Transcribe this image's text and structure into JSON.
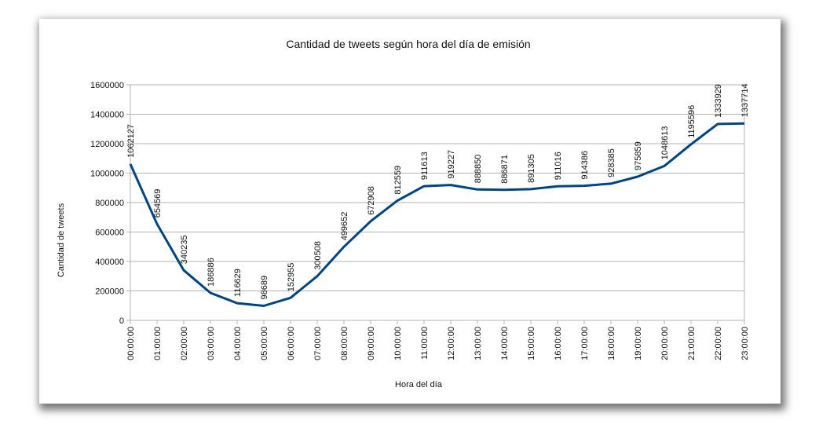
{
  "chart_data": {
    "type": "line",
    "title": "Cantidad de tweets según hora del día de emisión",
    "xlabel": "Hora del día",
    "ylabel": "Cantidad de tweets",
    "categories": [
      "00:00:00",
      "01:00:00",
      "02:00:00",
      "03:00:00",
      "04:00:00",
      "05:00:00",
      "06:00:00",
      "07:00:00",
      "08:00:00",
      "09:00:00",
      "10:00:00",
      "11:00:00",
      "12:00:00",
      "13:00:00",
      "14:00:00",
      "15:00:00",
      "16:00:00",
      "17:00:00",
      "18:00:00",
      "19:00:00",
      "20:00:00",
      "21:00:00",
      "22:00:00",
      "23:00:00"
    ],
    "values": [
      1062127,
      654569,
      340235,
      186886,
      116629,
      98689,
      152955,
      300508,
      499652,
      672908,
      812559,
      911613,
      919227,
      888850,
      886871,
      891305,
      911016,
      914386,
      928385,
      975859,
      1048613,
      1195596,
      1333929,
      1337714
    ],
    "value_labels": [
      "1062127",
      "654569",
      "340235",
      "186886",
      "116629",
      "98689",
      "152955",
      "300508",
      "499652",
      "672908",
      "812559",
      "911613",
      "919227",
      "888850",
      "886871",
      "891305",
      "911016",
      "914386",
      "928385",
      "975859",
      "1048613",
      "1195596",
      "1333929",
      "1337714"
    ],
    "yticks": [
      "0",
      "200000",
      "400000",
      "600000",
      "800000",
      "1000000",
      "1200000",
      "1400000",
      "1600000"
    ],
    "ylim": [
      0,
      1600000
    ],
    "grid": true,
    "legend": "none",
    "line_color": "#004586",
    "grid_color": "#b3b3b3"
  }
}
